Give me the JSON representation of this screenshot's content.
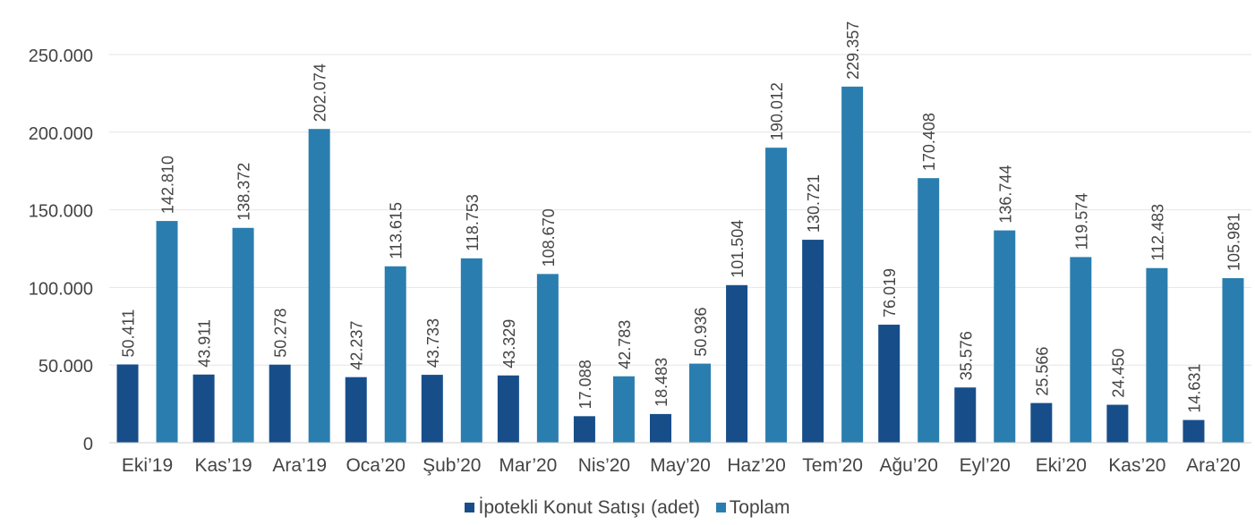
{
  "chart_data": {
    "type": "bar",
    "categories": [
      "Eki’19",
      "Kas’19",
      "Ara’19",
      "Oca’20",
      "Şub’20",
      "Mar’20",
      "Nis’20",
      "May’20",
      "Haz’20",
      "Tem’20",
      "Ağu’20",
      "Eyl’20",
      "Eki’20",
      "Kas’20",
      "Ara’20"
    ],
    "series": [
      {
        "name": "İpotekli Konut Satışı (adet)",
        "color": "#174e8a",
        "values": [
          50411,
          43911,
          50278,
          42237,
          43733,
          43329,
          17088,
          18483,
          101504,
          130721,
          76019,
          35576,
          25566,
          24450,
          14631
        ],
        "labels": [
          "50.411",
          "43.911",
          "50.278",
          "42.237",
          "43.733",
          "43.329",
          "17.088",
          "18.483",
          "101.504",
          "130.721",
          "76.019",
          "35.576",
          "25.566",
          "24.450",
          "14.631"
        ]
      },
      {
        "name": "Toplam",
        "color": "#2a7eaf",
        "values": [
          142810,
          138372,
          202074,
          113615,
          118753,
          108670,
          42783,
          50936,
          190012,
          229357,
          170408,
          136744,
          119574,
          112483,
          105981
        ],
        "labels": [
          "142.810",
          "138.372",
          "202.074",
          "113.615",
          "118.753",
          "108.670",
          "42.783",
          "50.936",
          "190.012",
          "229.357",
          "170.408",
          "136.744",
          "119.574",
          "112.483",
          "105.981"
        ]
      }
    ],
    "ylim": [
      0,
      250000
    ],
    "yticks": [
      0,
      50000,
      100000,
      150000,
      200000,
      250000
    ],
    "ytick_labels": [
      "0",
      "50.000",
      "100.000",
      "150.000",
      "200.000",
      "250.000"
    ],
    "grid": true,
    "legend_position": "bottom-center",
    "title": "",
    "xlabel": "",
    "ylabel": ""
  }
}
